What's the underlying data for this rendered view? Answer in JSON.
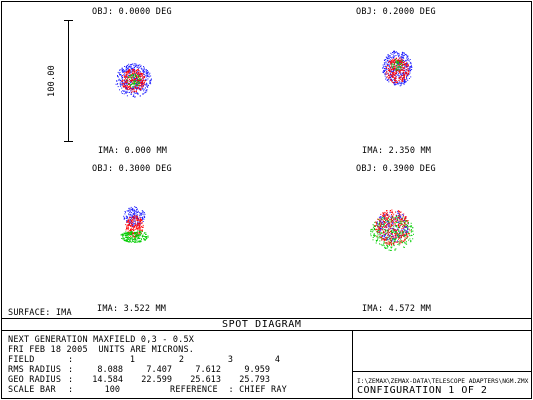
{
  "plot": {
    "fields": [
      {
        "obj": "OBJ: 0.0000 DEG",
        "ima": "IMA: 0.000 MM"
      },
      {
        "obj": "OBJ: 0.2000 DEG",
        "ima": "IMA: 2.350 MM"
      },
      {
        "obj": "OBJ: 0.3000 DEG",
        "ima": "IMA: 3.522 MM"
      },
      {
        "obj": "OBJ: 0.3900 DEG",
        "ima": "IMA: 4.572 MM"
      }
    ],
    "scale_label": "100.00",
    "surface": "SURFACE: IMA"
  },
  "title": "SPOT DIAGRAM",
  "info": {
    "line1": "NEXT GENERATION MAXFIELD 0,3 - 0.5X",
    "line2": "FRI FEB 18 2005  UNITS ARE MICRONS.",
    "field_label": "FIELD",
    "rms_label": "RMS RADIUS",
    "geo_label": "GEO RADIUS",
    "scale_label": "SCALE BAR",
    "field_values": [
      "1",
      "2",
      "3",
      "4"
    ],
    "rms_values": [
      "8.088",
      "7.407",
      "7.612",
      "9.959"
    ],
    "geo_values": [
      "14.584",
      "22.599",
      "25.613",
      "25.793"
    ],
    "scale_value": "100",
    "reference": "REFERENCE  : CHIEF RAY"
  },
  "file": {
    "path": "I:\\ZEMAX\\ZEMAX-DATA\\TELESCOPE ADAPTERS\\NGM.ZMX",
    "configuration": "CONFIGURATION 1 OF 2"
  },
  "colors": {
    "wavelength_1": "#1a1aff",
    "wavelength_2": "#00cc00",
    "wavelength_3": "#ff0000"
  }
}
